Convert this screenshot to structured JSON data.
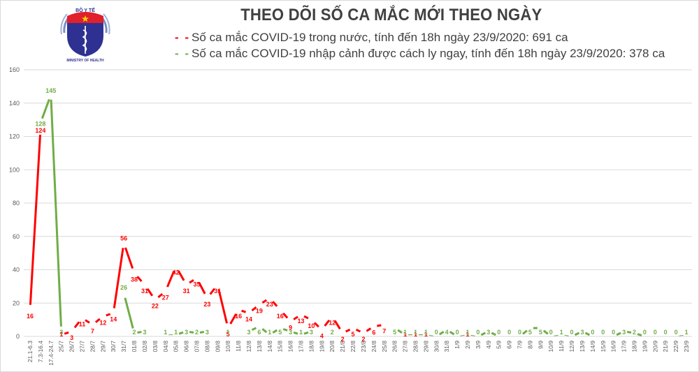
{
  "header": {
    "logo": {
      "top_text": "BỘ Y TẾ",
      "bottom_text": "MINISTRY OF HEALTH"
    },
    "title": "THEO DÕI SỐ CA MẮC MỚI THEO NGÀY"
  },
  "legend": [
    {
      "name": "domestic",
      "dash": "- -",
      "text": "Số ca mắc COVID-19 trong nước, tính đến 18h ngày 23/9/2020: 691 ca",
      "color": "#ff0000"
    },
    {
      "name": "imported",
      "dash": "- -",
      "text": "Số ca mắc COVID-19 nhập cảnh được cách ly ngay, tính đến 18h ngày 23/9/2020: 378 ca",
      "color": "#70ad47"
    }
  ],
  "colors": {
    "domestic": "#ff0000",
    "imported": "#70ad47",
    "grid": "#d9d9d9",
    "text": "#404040"
  },
  "chart_data": {
    "type": "line",
    "title": "THEO DÕI SỐ CA MẮC MỚI THEO NGÀY",
    "xlabel": "",
    "ylabel": "",
    "ylim": [
      0,
      160
    ],
    "yticks": [
      0,
      20,
      40,
      60,
      80,
      100,
      120,
      140,
      160
    ],
    "grid": true,
    "legend_position": "top",
    "categories": [
      "21.1-6.3",
      "7.3-16.4",
      "17.4-24.7",
      "25/7",
      "26/7",
      "27/7",
      "28/7",
      "29/7",
      "30/7",
      "31/7",
      "01/8",
      "02/8",
      "03/8",
      "04/8",
      "05/8",
      "06/8",
      "07/8",
      "08/8",
      "09/8",
      "10/8",
      "11/8",
      "12/8",
      "13/8",
      "14/8",
      "15/8",
      "16/8",
      "17/8",
      "18/8",
      "19/8",
      "20/8",
      "21/8",
      "22/8",
      "23/8",
      "24/8",
      "25/8",
      "26/8",
      "27/8",
      "28/8",
      "29/8",
      "30/8",
      "31/8",
      "1/9",
      "2/9",
      "3/9",
      "4/9",
      "5/9",
      "6/9",
      "7/9",
      "8/9",
      "9/9",
      "10/9",
      "11/9",
      "12/9",
      "13/9",
      "14/9",
      "15/9",
      "16/9",
      "17/9",
      "18/9",
      "19/9",
      "20/9",
      "21/9",
      "22/9",
      "23/9"
    ],
    "series": [
      {
        "name": "Số ca mắc COVID-19 trong nước",
        "color": "#ff0000",
        "values": [
          16,
          124,
          null,
          1,
          3,
          11,
          7,
          12,
          14,
          56,
          38,
          31,
          22,
          27,
          42,
          31,
          35,
          23,
          31,
          5,
          16,
          14,
          19,
          23,
          16,
          9,
          13,
          10,
          4,
          12,
          2,
          5,
          2,
          6,
          7,
          null,
          1,
          1,
          1,
          null,
          null,
          null,
          1,
          null,
          null,
          null,
          null,
          null,
          null,
          null,
          null,
          null,
          null,
          null,
          null,
          null,
          null,
          null,
          null,
          null,
          null,
          null,
          null,
          null
        ]
      },
      {
        "name": "Số ca mắc COVID-19 nhập cảnh được cách ly ngay",
        "color": "#70ad47",
        "values": [
          null,
          128,
          145,
          3,
          null,
          null,
          null,
          null,
          null,
          26,
          2,
          3,
          null,
          1,
          1,
          3,
          2,
          3,
          null,
          1,
          null,
          3,
          6,
          1,
          5,
          3,
          1,
          3,
          null,
          2,
          null,
          null,
          null,
          null,
          null,
          5,
          1,
          1,
          1,
          0,
          4,
          0,
          1,
          0,
          3,
          0,
          0,
          0,
          5,
          5,
          0,
          1,
          0,
          3,
          0,
          0,
          0,
          3,
          2,
          0,
          0,
          0,
          0,
          1
        ]
      }
    ]
  }
}
